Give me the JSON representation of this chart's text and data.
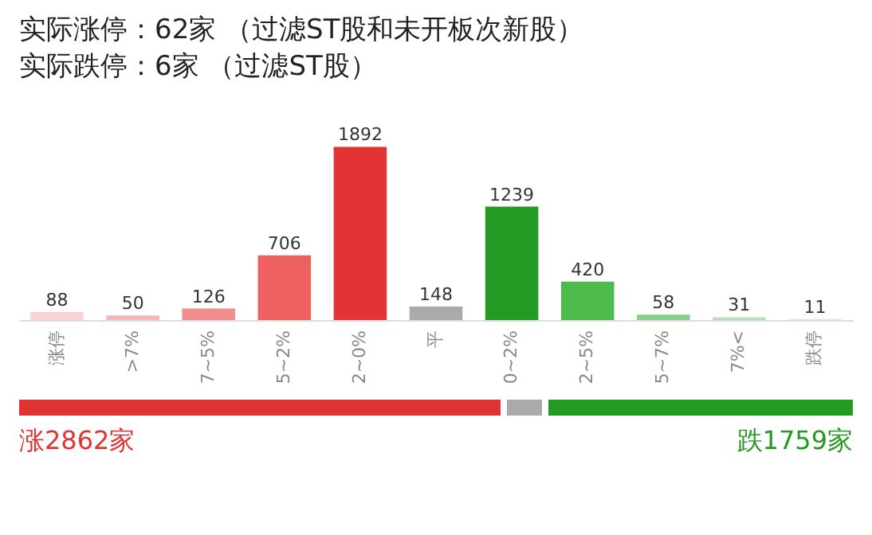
{
  "chart_data": {
    "type": "bar",
    "title": "实际涨停：62家 （过滤ST股和未开板次新股）",
    "subtitle": "实际跌停：6家 （过滤ST股）",
    "categories": [
      "涨停",
      ">7%",
      "7~5%",
      "5~2%",
      "2~0%",
      "平",
      "0~2%",
      "2~5%",
      "5~7%",
      "7%<",
      "跌停"
    ],
    "values": [
      88,
      50,
      126,
      706,
      1892,
      148,
      1239,
      420,
      58,
      31,
      11
    ],
    "colors": [
      "#f9d3d3",
      "#f3b5b5",
      "#f08e8e",
      "#ee6161",
      "#e23434",
      "#aaaaaa",
      "#239b23",
      "#4cbb4c",
      "#86cf86",
      "#b4e0b4",
      "#d3efd3"
    ],
    "data_labels": true,
    "annotations": [
      "涨2862家",
      "跌1759家"
    ]
  }
}
